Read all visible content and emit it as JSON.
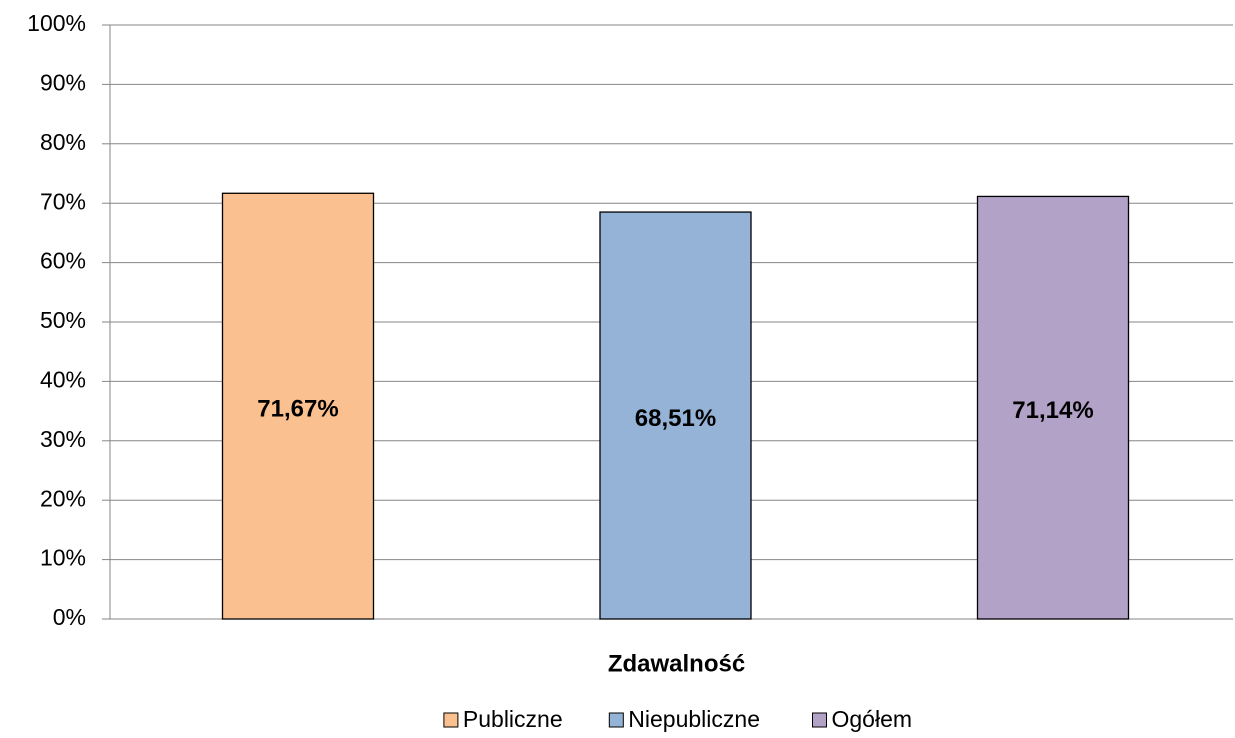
{
  "chart_data": {
    "type": "bar",
    "categories": [
      "Zdawalność"
    ],
    "series": [
      {
        "name": "Publiczne",
        "color": "#fac090",
        "values": [
          71.67
        ],
        "value_labels": [
          "71,67%"
        ]
      },
      {
        "name": "Niepubliczne",
        "color": "#95b3d7",
        "values": [
          68.51
        ],
        "value_labels": [
          "68,51%"
        ]
      },
      {
        "name": "Ogółem",
        "color": "#b3a2c7",
        "values": [
          71.14
        ],
        "value_labels": [
          "71,14%"
        ]
      }
    ],
    "ylim": [
      0,
      100
    ],
    "yticks": [
      {
        "value": 0,
        "label": "0%"
      },
      {
        "value": 10,
        "label": "10%"
      },
      {
        "value": 20,
        "label": "20%"
      },
      {
        "value": 30,
        "label": "30%"
      },
      {
        "value": 40,
        "label": "40%"
      },
      {
        "value": 50,
        "label": "50%"
      },
      {
        "value": 60,
        "label": "60%"
      },
      {
        "value": 70,
        "label": "70%"
      },
      {
        "value": 80,
        "label": "80%"
      },
      {
        "value": 90,
        "label": "90%"
      },
      {
        "value": 100,
        "label": "100%"
      }
    ],
    "grid": true,
    "legend": "bottom"
  }
}
